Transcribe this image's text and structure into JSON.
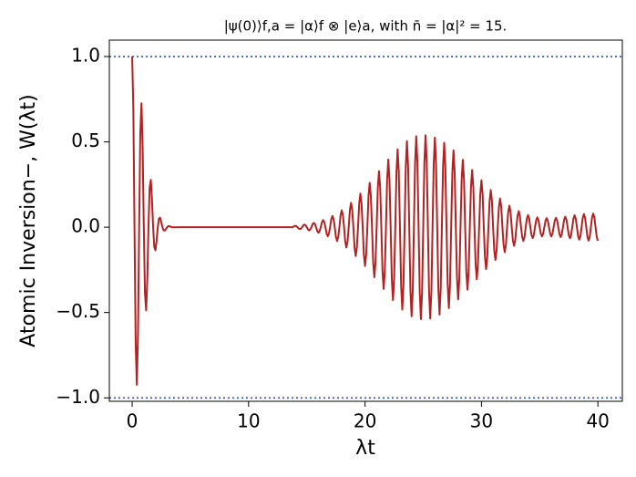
{
  "chart_data": {
    "type": "line",
    "title": "|ψ(0)⟩f,a = |α⟩f ⊗ |e⟩a, with n̄ = |α|² = 15.",
    "xlabel": "λt",
    "ylabel": "Atomic Inversion−, W(λt)",
    "xlim": [
      -1.96,
      42.1
    ],
    "ylim": [
      -1.02,
      1.096
    ],
    "xticks": [
      0,
      10,
      20,
      30,
      40
    ],
    "yticks": [
      {
        "value": -1.0,
        "label": "−1.0"
      },
      {
        "value": -0.5,
        "label": "−0.5"
      },
      {
        "value": 0.0,
        "label": "0.0"
      },
      0.5,
      {
        "value": 1.0,
        "label": "1.0"
      }
    ],
    "hlines": [
      1.0,
      -1.0
    ],
    "hline_color": "#3a5fcd",
    "series": [
      {
        "name": "W",
        "color": "#b22222",
        "x": [
          0,
          0.1,
          0.2,
          0.3,
          0.4,
          0.5,
          0.6,
          0.7,
          0.8,
          0.9,
          1.0,
          1.1,
          1.2,
          1.3,
          1.4,
          1.5,
          1.6,
          1.7,
          1.8,
          1.9,
          2.0,
          2.1,
          2.2,
          2.3,
          2.4,
          2.5,
          2.6,
          2.7,
          2.8,
          2.9,
          3.0,
          3.1,
          3.2,
          3.3,
          3.4,
          3.5,
          4,
          5,
          6,
          7,
          8,
          9,
          10,
          11,
          12,
          13,
          13.8,
          13.9,
          14.0,
          14.1,
          14.2,
          14.3,
          14.4,
          14.5,
          14.6,
          14.7,
          14.8,
          14.9,
          15.0,
          15.1,
          15.2,
          15.3,
          15.4,
          15.5,
          15.6,
          15.7,
          15.8,
          15.9,
          16.0,
          16.1,
          16.2,
          16.3,
          16.4,
          16.5,
          16.6,
          16.7,
          16.8,
          16.9,
          17.0,
          17.1,
          17.2,
          17.3,
          17.4,
          17.5,
          17.6,
          17.7,
          17.8,
          17.9,
          18.0,
          18.1,
          18.2,
          18.3,
          18.4,
          18.5,
          18.6,
          18.7,
          18.8,
          18.9,
          19.0,
          19.1,
          19.2,
          19.3,
          19.4,
          19.5,
          19.6,
          19.7,
          19.8,
          19.9,
          20.0,
          20.1,
          20.2,
          20.3,
          20.4,
          20.5,
          20.6,
          20.7,
          20.8,
          20.9,
          21.0,
          21.1,
          21.2,
          21.3,
          21.4,
          21.5,
          21.6,
          21.7,
          21.8,
          21.9,
          22.0,
          22.1,
          22.2,
          22.3,
          22.4,
          22.5,
          22.6,
          22.7,
          22.8,
          22.9,
          23.0,
          23.1,
          23.2,
          23.3,
          23.4,
          23.5,
          23.6,
          23.7,
          23.8,
          23.9,
          24.0,
          24.1,
          24.2,
          24.3,
          24.4,
          24.5,
          24.6,
          24.7,
          24.8,
          24.9,
          25.0,
          25.1,
          25.2,
          25.3,
          25.4,
          25.5,
          25.6,
          25.7,
          25.8,
          25.9,
          26.0,
          26.1,
          26.2,
          26.3,
          26.4,
          26.5,
          26.6,
          26.7,
          26.8,
          26.9,
          27.0,
          27.1,
          27.2,
          27.3,
          27.4,
          27.5,
          27.6,
          27.7,
          27.8,
          27.9,
          28.0,
          28.1,
          28.2,
          28.3,
          28.4,
          28.5,
          28.6,
          28.7,
          28.8,
          28.9,
          29.0,
          29.1,
          29.2,
          29.3,
          29.4,
          29.5,
          29.6,
          29.7,
          29.8,
          29.9,
          30.0,
          30.1,
          30.2,
          30.3,
          30.4,
          30.5,
          30.6,
          30.7,
          30.8,
          30.9,
          31.0,
          31.1,
          31.2,
          31.3,
          31.4,
          31.5,
          31.6,
          31.7,
          31.8,
          31.9,
          32.0,
          32.1,
          32.2,
          32.3,
          32.4,
          32.5,
          32.6,
          32.7,
          32.8,
          32.9,
          33.0,
          33.1,
          33.2,
          33.3,
          33.4,
          33.5,
          33.6,
          33.7,
          33.8,
          33.9,
          34.0,
          34.1,
          34.2,
          34.3,
          34.4,
          34.5,
          34.6,
          34.7,
          34.8,
          34.9,
          35.0,
          35.1,
          35.2,
          35.3,
          35.4,
          35.5,
          35.6,
          35.7,
          35.8,
          35.9,
          36.0,
          36.1,
          36.2,
          36.3,
          36.4,
          36.5,
          36.6,
          36.7,
          36.8,
          36.9,
          37.0,
          37.1,
          37.2,
          37.3,
          37.4,
          37.5,
          37.6,
          37.7,
          37.8,
          37.9,
          38.0,
          38.1,
          38.2,
          38.3,
          38.4,
          38.5,
          38.6,
          38.7,
          38.8,
          38.9,
          39.0,
          39.1,
          39.2,
          39.3,
          39.4,
          39.5,
          39.6,
          39.7,
          39.8,
          39.9,
          40.0
        ],
        "values": [
          1,
          0.703,
          0,
          -0.676,
          -0.923,
          -0.624,
          0,
          0.554,
          0.726,
          0.472,
          0,
          -0.386,
          -0.487,
          -0.304,
          0,
          0.23,
          0.278,
          0.167,
          0,
          -0.116,
          -0.135,
          -0.078,
          0,
          0.05,
          0.056,
          0.031,
          0,
          -0.018,
          -0.02,
          -0.011,
          0,
          0.006,
          0.006,
          0.003,
          0,
          -0.001,
          0,
          0,
          0,
          0,
          0,
          0,
          0,
          0,
          0,
          0,
          0,
          0.006,
          0.008,
          0.006,
          0,
          -0.008,
          -0.011,
          -0.008,
          0,
          0.011,
          0.015,
          0.011,
          0,
          -0.013,
          -0.019,
          -0.013,
          0,
          0.018,
          0.025,
          0.018,
          0,
          -0.023,
          -0.033,
          -0.023,
          0,
          0.03,
          0.042,
          0.03,
          0,
          -0.037,
          -0.053,
          -0.037,
          0,
          0.047,
          0.066,
          0.047,
          0,
          -0.057,
          -0.081,
          -0.057,
          0,
          0.07,
          0.099,
          0.07,
          0,
          -0.084,
          -0.119,
          -0.084,
          0,
          0.101,
          0.143,
          0.101,
          0,
          -0.119,
          -0.169,
          -0.119,
          0,
          0.139,
          0.197,
          0.139,
          0,
          -0.16,
          -0.227,
          -0.16,
          0,
          0.184,
          0.26,
          0.184,
          0,
          -0.207,
          -0.293,
          -0.207,
          0,
          0.232,
          0.328,
          0.232,
          0,
          -0.256,
          -0.362,
          -0.256,
          0,
          0.28,
          0.396,
          0.28,
          0,
          -0.302,
          -0.427,
          -0.302,
          0,
          0.323,
          0.457,
          0.323,
          0,
          -0.341,
          -0.483,
          -0.341,
          0,
          0.356,
          0.504,
          0.356,
          0,
          -0.369,
          -0.522,
          -0.369,
          0,
          0.377,
          0.533,
          0.377,
          0,
          -0.381,
          -0.539,
          -0.381,
          0,
          0.381,
          0.539,
          0.381,
          0,
          -0.378,
          -0.535,
          -0.378,
          0,
          0.371,
          0.525,
          0.371,
          0,
          -0.362,
          -0.512,
          -0.362,
          0,
          0.35,
          0.495,
          0.35,
          0,
          -0.335,
          -0.474,
          -0.335,
          0,
          0.318,
          0.45,
          0.318,
          0,
          -0.299,
          -0.423,
          -0.299,
          0,
          0.279,
          0.395,
          0.279,
          0,
          -0.259,
          -0.366,
          -0.259,
          0,
          0.237,
          0.335,
          0.237,
          0,
          -0.216,
          -0.305,
          -0.216,
          0,
          0.194,
          0.275,
          0.194,
          0,
          -0.174,
          -0.246,
          -0.174,
          0,
          0.154,
          0.218,
          0.154,
          0,
          -0.136,
          -0.192,
          -0.136,
          0,
          0.119,
          0.168,
          0.119,
          0,
          -0.103,
          -0.146,
          -0.103,
          0,
          0.089,
          0.126,
          0.089,
          0,
          -0.077,
          -0.109,
          -0.077,
          0,
          0.066,
          0.094,
          0.066,
          0,
          -0.057,
          -0.081,
          -0.057,
          0,
          0.05,
          0.071,
          0.05,
          0,
          -0.045,
          -0.064,
          -0.045,
          0,
          0.041,
          0.058,
          0.041,
          0,
          -0.038,
          -0.054,
          -0.038,
          0,
          0.037,
          0.053,
          0.037,
          0,
          -0.038,
          -0.054,
          -0.038,
          0,
          0.039,
          0.055,
          0.039,
          0,
          -0.041,
          -0.058,
          -0.041,
          0,
          0.044,
          0.062,
          0.044,
          0,
          -0.046,
          -0.065,
          -0.046,
          0,
          0.049,
          0.07,
          0.049,
          0,
          -0.052,
          -0.073,
          -0.052,
          0,
          0.054,
          0.077,
          0.054,
          0,
          -0.056,
          -0.079,
          -0.056,
          0,
          0.057,
          0.08,
          0.057,
          0,
          -0.057,
          -0.08
        ]
      }
    ]
  }
}
